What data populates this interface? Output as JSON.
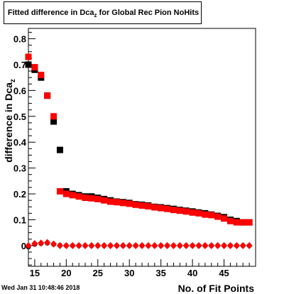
{
  "title": {
    "prefix": "Fitted difference in Dca",
    "subscript": "z",
    "suffix": " for Global Rec Pion NoHits"
  },
  "footer": "Wed Jan 31 10:48:46 2018",
  "chart_data": {
    "type": "scatter",
    "xlabel": "No. of Fit Points",
    "ylabel": "difference in Dca",
    "ylabel_subscript": "z",
    "xlim": [
      14,
      50
    ],
    "ylim": [
      -0.08,
      0.84
    ],
    "x_ticks": [
      15,
      20,
      25,
      30,
      35,
      40,
      45
    ],
    "y_ticks": [
      0,
      0.1,
      0.2,
      0.3,
      0.4,
      0.5,
      0.6,
      0.7,
      0.8
    ],
    "y_tick_labels": [
      "0",
      "0.1",
      "0.2",
      "0.3",
      "0.4",
      "0.5",
      "0.6",
      "0.7",
      "0.8"
    ],
    "grid": false,
    "colors": {
      "black_series": "#000000",
      "red_series": "#ff0000"
    },
    "series": [
      {
        "marker": "square",
        "color": "#000000",
        "x": [
          14,
          15,
          16,
          17,
          18,
          19,
          20,
          21,
          22,
          23,
          24,
          25,
          26,
          27,
          28,
          29,
          30,
          31,
          32,
          33,
          34,
          35,
          36,
          37,
          38,
          39,
          40,
          41,
          42,
          43,
          44,
          45,
          46,
          47,
          48,
          49
        ],
        "y": [
          0.7,
          0.68,
          0.65,
          0.58,
          0.48,
          0.37,
          0.21,
          0.2,
          0.195,
          0.19,
          0.19,
          0.185,
          0.18,
          0.175,
          0.17,
          0.168,
          0.165,
          0.16,
          0.158,
          0.155,
          0.15,
          0.148,
          0.145,
          0.142,
          0.138,
          0.135,
          0.132,
          0.128,
          0.125,
          0.12,
          0.115,
          0.11,
          0.1,
          0.095,
          0.09,
          0.09
        ]
      },
      {
        "marker": "square",
        "color": "#ff0000",
        "x": [
          14,
          15,
          16,
          17,
          18,
          19,
          20,
          21,
          22,
          23,
          24,
          25,
          26,
          27,
          28,
          29,
          30,
          31,
          32,
          33,
          34,
          35,
          36,
          37,
          38,
          39,
          40,
          41,
          42,
          43,
          44,
          45,
          46,
          47,
          48,
          49
        ],
        "y": [
          0.73,
          0.69,
          0.66,
          0.58,
          0.5,
          0.21,
          0.2,
          0.195,
          0.19,
          0.185,
          0.183,
          0.18,
          0.175,
          0.17,
          0.168,
          0.165,
          0.162,
          0.158,
          0.155,
          0.152,
          0.148,
          0.145,
          0.142,
          0.138,
          0.135,
          0.132,
          0.128,
          0.125,
          0.12,
          0.118,
          0.112,
          0.105,
          0.095,
          0.09,
          0.09,
          0.09
        ]
      },
      {
        "marker": "circle",
        "color": "#000000",
        "x": [
          14,
          15,
          16,
          17,
          18,
          19,
          20,
          21,
          22,
          23,
          24,
          25,
          26,
          27,
          28,
          29,
          30,
          31,
          32,
          33,
          34,
          35,
          36,
          37,
          38,
          39,
          40,
          41,
          42,
          43,
          44,
          45,
          46,
          47,
          48,
          49
        ],
        "y": [
          -0.005,
          0.005,
          0.008,
          0.01,
          0.005,
          0.001,
          0.0,
          0.0,
          0.0,
          0.0,
          0.0,
          0.0,
          0.0,
          0.0,
          0.0,
          0.0,
          0.0,
          0.0,
          0.0,
          0.0,
          0.0,
          0.0,
          0.0,
          0.0,
          0.0,
          0.0,
          0.0,
          0.0,
          0.0,
          0.0,
          0.0,
          0.0,
          0.0,
          0.0,
          0.0,
          0.0
        ]
      },
      {
        "marker": "diamond",
        "color": "#ff0000",
        "x": [
          14,
          15,
          16,
          17,
          18,
          19,
          20,
          21,
          22,
          23,
          24,
          25,
          26,
          27,
          28,
          29,
          30,
          31,
          32,
          33,
          34,
          35,
          36,
          37,
          38,
          39,
          40,
          41,
          42,
          43,
          44,
          45,
          46,
          47,
          48,
          49
        ],
        "y": [
          0.0,
          0.008,
          0.01,
          0.012,
          0.006,
          0.0,
          0.0,
          0.0,
          0.0,
          0.0,
          0.0,
          0.0,
          0.0,
          0.0,
          0.0,
          0.0,
          0.0,
          0.0,
          0.0,
          0.0,
          0.0,
          0.0,
          0.0,
          0.0,
          0.0,
          0.0,
          0.0,
          0.0,
          0.0,
          0.0,
          0.0,
          0.0,
          0.0,
          0.0,
          0.0,
          0.0
        ]
      }
    ]
  }
}
